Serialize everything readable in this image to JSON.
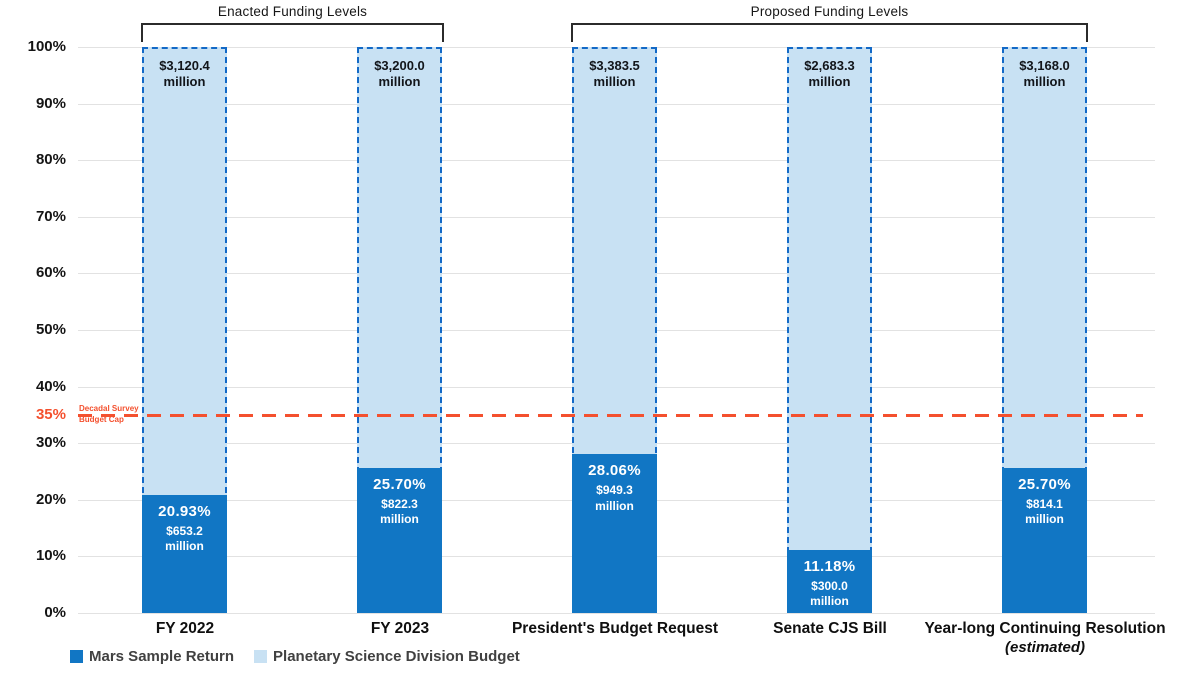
{
  "header": {
    "groups": [
      {
        "label": "Enacted Funding Levels"
      },
      {
        "label": "Proposed Funding Levels"
      }
    ]
  },
  "y_axis": {
    "ticks": [
      {
        "label": "100%",
        "value": 100
      },
      {
        "label": "90%",
        "value": 90
      },
      {
        "label": "80%",
        "value": 80
      },
      {
        "label": "70%",
        "value": 70
      },
      {
        "label": "60%",
        "value": 60
      },
      {
        "label": "50%",
        "value": 50
      },
      {
        "label": "40%",
        "value": 40
      },
      {
        "label": "30%",
        "value": 30
      },
      {
        "label": "20%",
        "value": 20
      },
      {
        "label": "10%",
        "value": 10
      },
      {
        "label": "0%",
        "value": 0
      }
    ]
  },
  "cap_line": {
    "value": 35,
    "tick_label": "35%",
    "label_line1": "Decadal Survey",
    "label_line2": "Budget Cap",
    "color": "#f4502e"
  },
  "legend": [
    {
      "label": "Mars Sample Return",
      "color": "#1176c4"
    },
    {
      "label": "Planetary Science Division Budget",
      "color": "#c8e1f3"
    }
  ],
  "colors": {
    "msr_bar": "#1176c4",
    "psd_bar": "#c8e1f3",
    "bar_dashed_border": "#1269c7",
    "cap_red": "#f4502e",
    "gridline": "#e2e2e2"
  },
  "chart_data": {
    "type": "bar",
    "subtype": "percent-of-total stacked bars",
    "title": "",
    "xlabel": "",
    "ylabel": "",
    "ylim": [
      0,
      100
    ],
    "grid": true,
    "legend_position": "bottom-left",
    "categories": [
      "FY 2022",
      "FY 2023",
      "President's Budget Request",
      "Senate CJS Bill",
      "Year-long Continuing Resolution (estimated)"
    ],
    "category_groups": [
      {
        "label": "Enacted Funding Levels",
        "category_indices": [
          0,
          1
        ]
      },
      {
        "label": "Proposed Funding Levels",
        "category_indices": [
          2,
          3,
          4
        ]
      }
    ],
    "series": [
      {
        "name": "Mars Sample Return",
        "color": "#1176c4",
        "values_percent_of_psd": [
          20.93,
          25.7,
          28.06,
          11.18,
          25.7
        ],
        "values_millions": [
          653.2,
          822.3,
          949.3,
          300.0,
          814.1
        ]
      },
      {
        "name": "Planetary Science Division Budget",
        "color": "#c8e1f3",
        "values_percent_of_psd": [
          100,
          100,
          100,
          100,
          100
        ],
        "values_millions": [
          3120.4,
          3200.0,
          3383.5,
          2683.3,
          3168.0
        ]
      }
    ],
    "annotations": {
      "cap": {
        "label": "Decadal Survey Budget Cap",
        "value_percent": 35
      }
    },
    "bars": [
      {
        "category": "FY 2022",
        "sublabel": "",
        "total_label": "$3,120.4 million",
        "percent": 20.93,
        "percent_label": "20.93%",
        "amount_label": "$653.2 million"
      },
      {
        "category": "FY 2023",
        "sublabel": "",
        "total_label": "$3,200.0 million",
        "percent": 25.7,
        "percent_label": "25.70%",
        "amount_label": "$822.3 million"
      },
      {
        "category": "President's Budget Request",
        "sublabel": "",
        "total_label": "$3,383.5 million",
        "percent": 28.06,
        "percent_label": "28.06%",
        "amount_label": "$949.3 million"
      },
      {
        "category": "Senate CJS Bill",
        "sublabel": "",
        "total_label": "$2,683.3 million",
        "percent": 11.18,
        "percent_label": "11.18%",
        "amount_label": "$300.0 million"
      },
      {
        "category": "Year-long Continuing Resolution",
        "sublabel": "(estimated)",
        "total_label": "$3,168.0 million",
        "percent": 25.7,
        "percent_label": "25.70%",
        "amount_label": "$814.1 million"
      }
    ]
  }
}
